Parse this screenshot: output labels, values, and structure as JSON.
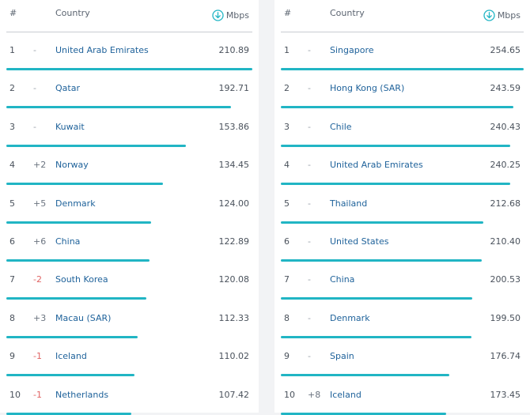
{
  "left": {
    "header": {
      "rank": "#",
      "country": "Country",
      "unit": "Mbps"
    },
    "rows": [
      {
        "rank": "1",
        "change": "-",
        "dir": "none",
        "country": "United Arab Emirates",
        "speed": "210.89",
        "value": 210.89
      },
      {
        "rank": "2",
        "change": "-",
        "dir": "none",
        "country": "Qatar",
        "speed": "192.71",
        "value": 192.71
      },
      {
        "rank": "3",
        "change": "-",
        "dir": "none",
        "country": "Kuwait",
        "speed": "153.86",
        "value": 153.86
      },
      {
        "rank": "4",
        "change": "+2",
        "dir": "up",
        "country": "Norway",
        "speed": "134.45",
        "value": 134.45
      },
      {
        "rank": "5",
        "change": "+5",
        "dir": "up",
        "country": "Denmark",
        "speed": "124.00",
        "value": 124.0
      },
      {
        "rank": "6",
        "change": "+6",
        "dir": "up",
        "country": "China",
        "speed": "122.89",
        "value": 122.89
      },
      {
        "rank": "7",
        "change": "-2",
        "dir": "down",
        "country": "South Korea",
        "speed": "120.08",
        "value": 120.08
      },
      {
        "rank": "8",
        "change": "+3",
        "dir": "up",
        "country": "Macau (SAR)",
        "speed": "112.33",
        "value": 112.33
      },
      {
        "rank": "9",
        "change": "-1",
        "dir": "down",
        "country": "Iceland",
        "speed": "110.02",
        "value": 110.02
      },
      {
        "rank": "10",
        "change": "-1",
        "dir": "down",
        "country": "Netherlands",
        "speed": "107.42",
        "value": 107.42
      }
    ]
  },
  "right": {
    "header": {
      "rank": "#",
      "country": "Country",
      "unit": "Mbps"
    },
    "rows": [
      {
        "rank": "1",
        "change": "-",
        "dir": "none",
        "country": "Singapore",
        "speed": "254.65",
        "value": 254.65
      },
      {
        "rank": "2",
        "change": "-",
        "dir": "none",
        "country": "Hong Kong (SAR)",
        "speed": "243.59",
        "value": 243.59
      },
      {
        "rank": "3",
        "change": "-",
        "dir": "none",
        "country": "Chile",
        "speed": "240.43",
        "value": 240.43
      },
      {
        "rank": "4",
        "change": "-",
        "dir": "none",
        "country": "United Arab Emirates",
        "speed": "240.25",
        "value": 240.25
      },
      {
        "rank": "5",
        "change": "-",
        "dir": "none",
        "country": "Thailand",
        "speed": "212.68",
        "value": 212.68
      },
      {
        "rank": "6",
        "change": "-",
        "dir": "none",
        "country": "United States",
        "speed": "210.40",
        "value": 210.4
      },
      {
        "rank": "7",
        "change": "-",
        "dir": "none",
        "country": "China",
        "speed": "200.53",
        "value": 200.53
      },
      {
        "rank": "8",
        "change": "-",
        "dir": "none",
        "country": "Denmark",
        "speed": "199.50",
        "value": 199.5
      },
      {
        "rank": "9",
        "change": "-",
        "dir": "none",
        "country": "Spain",
        "speed": "176.74",
        "value": 176.74
      },
      {
        "rank": "10",
        "change": "+8",
        "dir": "up",
        "country": "Iceland",
        "speed": "173.45",
        "value": 173.45
      }
    ]
  },
  "colors": {
    "bar": "#21b5c4",
    "country_link": "#20639b",
    "down": "#e06464"
  },
  "icons": {
    "unit": "download-arrow-icon"
  }
}
